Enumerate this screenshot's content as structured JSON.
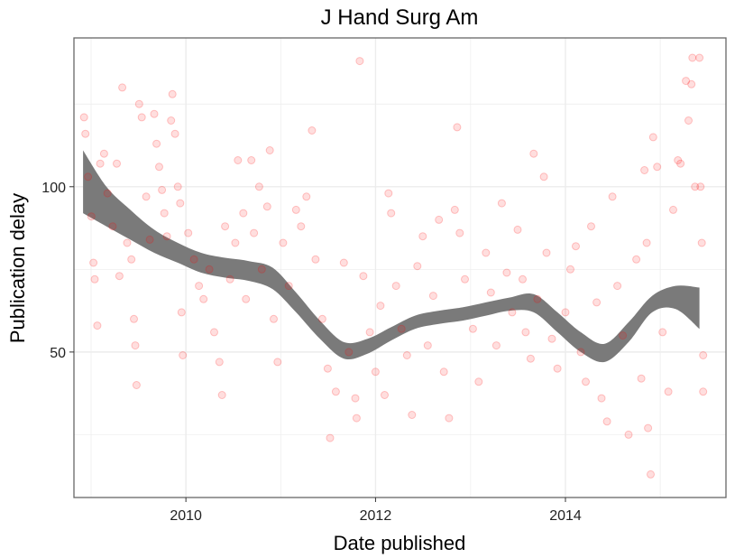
{
  "chart_data": {
    "type": "scatter",
    "title": "J Hand Surg Am",
    "xlabel": "Date published",
    "ylabel": "Publication delay",
    "x_ticks": [
      "2010",
      "2012",
      "2014"
    ],
    "y_ticks": [
      "50",
      "100"
    ],
    "xlim": [
      "2008-10-27",
      "2015-09-11"
    ],
    "ylim": [
      6,
      145
    ],
    "grid": true,
    "colors": {
      "points": "#ff0000",
      "smooth_band": "#7a7a7a",
      "panel_border": "#666666",
      "grid": "#ececec"
    },
    "smooth_band": [
      {
        "x": "2008-12-01",
        "lower": 92,
        "upper": 111
      },
      {
        "x": "2009-03-01",
        "lower": 88,
        "upper": 100
      },
      {
        "x": "2009-06-01",
        "lower": 84,
        "upper": 93
      },
      {
        "x": "2009-09-01",
        "lower": 80,
        "upper": 87
      },
      {
        "x": "2009-12-01",
        "lower": 77,
        "upper": 83
      },
      {
        "x": "2010-03-01",
        "lower": 74,
        "upper": 80
      },
      {
        "x": "2010-06-01",
        "lower": 72.5,
        "upper": 78.5
      },
      {
        "x": "2010-09-01",
        "lower": 71.5,
        "upper": 77.5
      },
      {
        "x": "2010-12-01",
        "lower": 69,
        "upper": 75.5
      },
      {
        "x": "2011-03-01",
        "lower": 62,
        "upper": 68
      },
      {
        "x": "2011-06-01",
        "lower": 54,
        "upper": 59.5
      },
      {
        "x": "2011-09-01",
        "lower": 48,
        "upper": 53
      },
      {
        "x": "2011-12-01",
        "lower": 49.5,
        "upper": 54
      },
      {
        "x": "2012-03-01",
        "lower": 53.5,
        "upper": 57.5
      },
      {
        "x": "2012-06-01",
        "lower": 57,
        "upper": 61
      },
      {
        "x": "2012-09-01",
        "lower": 58.5,
        "upper": 62.5
      },
      {
        "x": "2012-12-01",
        "lower": 59.5,
        "upper": 63.5
      },
      {
        "x": "2013-03-01",
        "lower": 61,
        "upper": 65
      },
      {
        "x": "2013-06-01",
        "lower": 62.5,
        "upper": 66.5
      },
      {
        "x": "2013-09-01",
        "lower": 62,
        "upper": 67.5
      },
      {
        "x": "2013-12-01",
        "lower": 56,
        "upper": 62
      },
      {
        "x": "2014-03-01",
        "lower": 50,
        "upper": 56
      },
      {
        "x": "2014-06-01",
        "lower": 47,
        "upper": 52.5
      },
      {
        "x": "2014-09-01",
        "lower": 53,
        "upper": 59
      },
      {
        "x": "2014-12-01",
        "lower": 62,
        "upper": 67
      },
      {
        "x": "2015-03-01",
        "lower": 63,
        "upper": 70
      },
      {
        "x": "2015-06-01",
        "lower": 57,
        "upper": 69.5
      }
    ],
    "points": [
      {
        "x": "2008-12-05",
        "y": 121
      },
      {
        "x": "2008-12-10",
        "y": 116
      },
      {
        "x": "2008-12-20",
        "y": 103
      },
      {
        "x": "2009-01-02",
        "y": 91
      },
      {
        "x": "2009-01-10",
        "y": 77
      },
      {
        "x": "2009-01-15",
        "y": 72
      },
      {
        "x": "2009-01-25",
        "y": 58
      },
      {
        "x": "2009-02-05",
        "y": 107
      },
      {
        "x": "2009-02-20",
        "y": 110
      },
      {
        "x": "2009-03-05",
        "y": 98
      },
      {
        "x": "2009-03-25",
        "y": 88
      },
      {
        "x": "2009-04-10",
        "y": 107
      },
      {
        "x": "2009-04-20",
        "y": 73
      },
      {
        "x": "2009-05-01",
        "y": 130
      },
      {
        "x": "2009-05-20",
        "y": 83
      },
      {
        "x": "2009-06-05",
        "y": 78
      },
      {
        "x": "2009-06-15",
        "y": 60
      },
      {
        "x": "2009-06-20",
        "y": 52
      },
      {
        "x": "2009-06-25",
        "y": 40
      },
      {
        "x": "2009-07-05",
        "y": 125
      },
      {
        "x": "2009-07-15",
        "y": 121
      },
      {
        "x": "2009-08-01",
        "y": 97
      },
      {
        "x": "2009-08-15",
        "y": 84
      },
      {
        "x": "2009-09-01",
        "y": 122
      },
      {
        "x": "2009-09-10",
        "y": 113
      },
      {
        "x": "2009-09-20",
        "y": 106
      },
      {
        "x": "2009-10-01",
        "y": 99
      },
      {
        "x": "2009-10-10",
        "y": 92
      },
      {
        "x": "2009-10-20",
        "y": 85
      },
      {
        "x": "2009-11-05",
        "y": 120
      },
      {
        "x": "2009-11-10",
        "y": 128
      },
      {
        "x": "2009-11-20",
        "y": 116
      },
      {
        "x": "2009-12-01",
        "y": 100
      },
      {
        "x": "2009-12-10",
        "y": 95
      },
      {
        "x": "2009-12-15",
        "y": 62
      },
      {
        "x": "2009-12-20",
        "y": 49
      },
      {
        "x": "2010-01-10",
        "y": 86
      },
      {
        "x": "2010-02-01",
        "y": 78
      },
      {
        "x": "2010-02-20",
        "y": 70
      },
      {
        "x": "2010-03-10",
        "y": 66
      },
      {
        "x": "2010-04-01",
        "y": 75
      },
      {
        "x": "2010-04-20",
        "y": 56
      },
      {
        "x": "2010-05-10",
        "y": 47
      },
      {
        "x": "2010-05-20",
        "y": 37
      },
      {
        "x": "2010-06-01",
        "y": 88
      },
      {
        "x": "2010-06-20",
        "y": 72
      },
      {
        "x": "2010-07-10",
        "y": 83
      },
      {
        "x": "2010-07-20",
        "y": 108
      },
      {
        "x": "2010-08-10",
        "y": 92
      },
      {
        "x": "2010-08-20",
        "y": 66
      },
      {
        "x": "2010-09-10",
        "y": 108
      },
      {
        "x": "2010-09-20",
        "y": 86
      },
      {
        "x": "2010-10-10",
        "y": 100
      },
      {
        "x": "2010-10-20",
        "y": 75
      },
      {
        "x": "2010-11-10",
        "y": 94
      },
      {
        "x": "2010-11-20",
        "y": 111
      },
      {
        "x": "2010-12-05",
        "y": 60
      },
      {
        "x": "2010-12-20",
        "y": 47
      },
      {
        "x": "2011-01-10",
        "y": 83
      },
      {
        "x": "2011-02-01",
        "y": 70
      },
      {
        "x": "2011-03-01",
        "y": 93
      },
      {
        "x": "2011-03-20",
        "y": 88
      },
      {
        "x": "2011-04-10",
        "y": 97
      },
      {
        "x": "2011-05-01",
        "y": 117
      },
      {
        "x": "2011-05-15",
        "y": 78
      },
      {
        "x": "2011-06-10",
        "y": 60
      },
      {
        "x": "2011-07-01",
        "y": 45
      },
      {
        "x": "2011-07-10",
        "y": 24
      },
      {
        "x": "2011-08-01",
        "y": 38
      },
      {
        "x": "2011-09-01",
        "y": 77
      },
      {
        "x": "2011-09-20",
        "y": 50
      },
      {
        "x": "2011-10-15",
        "y": 36
      },
      {
        "x": "2011-10-20",
        "y": 30
      },
      {
        "x": "2011-11-01",
        "y": 138
      },
      {
        "x": "2011-11-15",
        "y": 73
      },
      {
        "x": "2011-12-10",
        "y": 56
      },
      {
        "x": "2012-01-01",
        "y": 44
      },
      {
        "x": "2012-01-20",
        "y": 64
      },
      {
        "x": "2012-02-05",
        "y": 37
      },
      {
        "x": "2012-02-20",
        "y": 98
      },
      {
        "x": "2012-03-01",
        "y": 92
      },
      {
        "x": "2012-03-20",
        "y": 70
      },
      {
        "x": "2012-04-10",
        "y": 57
      },
      {
        "x": "2012-05-01",
        "y": 49
      },
      {
        "x": "2012-05-20",
        "y": 31
      },
      {
        "x": "2012-06-10",
        "y": 76
      },
      {
        "x": "2012-07-01",
        "y": 85
      },
      {
        "x": "2012-07-20",
        "y": 52
      },
      {
        "x": "2012-08-10",
        "y": 67
      },
      {
        "x": "2012-09-01",
        "y": 90
      },
      {
        "x": "2012-09-20",
        "y": 44
      },
      {
        "x": "2012-10-10",
        "y": 30
      },
      {
        "x": "2012-11-01",
        "y": 93
      },
      {
        "x": "2012-11-10",
        "y": 118
      },
      {
        "x": "2012-11-20",
        "y": 86
      },
      {
        "x": "2012-12-10",
        "y": 72
      },
      {
        "x": "2013-01-10",
        "y": 57
      },
      {
        "x": "2013-02-01",
        "y": 41
      },
      {
        "x": "2013-03-01",
        "y": 80
      },
      {
        "x": "2013-03-20",
        "y": 68
      },
      {
        "x": "2013-04-10",
        "y": 52
      },
      {
        "x": "2013-05-01",
        "y": 95
      },
      {
        "x": "2013-05-20",
        "y": 74
      },
      {
        "x": "2013-06-10",
        "y": 62
      },
      {
        "x": "2013-07-01",
        "y": 87
      },
      {
        "x": "2013-07-20",
        "y": 72
      },
      {
        "x": "2013-08-01",
        "y": 56
      },
      {
        "x": "2013-08-20",
        "y": 48
      },
      {
        "x": "2013-09-01",
        "y": 110
      },
      {
        "x": "2013-09-15",
        "y": 66
      },
      {
        "x": "2013-10-10",
        "y": 103
      },
      {
        "x": "2013-10-20",
        "y": 80
      },
      {
        "x": "2013-11-10",
        "y": 54
      },
      {
        "x": "2013-12-01",
        "y": 45
      },
      {
        "x": "2014-01-01",
        "y": 62
      },
      {
        "x": "2014-01-20",
        "y": 75
      },
      {
        "x": "2014-02-10",
        "y": 82
      },
      {
        "x": "2014-03-01",
        "y": 50
      },
      {
        "x": "2014-03-20",
        "y": 41
      },
      {
        "x": "2014-04-10",
        "y": 88
      },
      {
        "x": "2014-05-01",
        "y": 65
      },
      {
        "x": "2014-05-20",
        "y": 36
      },
      {
        "x": "2014-06-10",
        "y": 29
      },
      {
        "x": "2014-07-01",
        "y": 97
      },
      {
        "x": "2014-07-20",
        "y": 70
      },
      {
        "x": "2014-08-10",
        "y": 55
      },
      {
        "x": "2014-09-01",
        "y": 25
      },
      {
        "x": "2014-10-01",
        "y": 78
      },
      {
        "x": "2014-10-20",
        "y": 42
      },
      {
        "x": "2014-11-01",
        "y": 105
      },
      {
        "x": "2014-11-10",
        "y": 83
      },
      {
        "x": "2014-11-15",
        "y": 27
      },
      {
        "x": "2014-11-25",
        "y": 13
      },
      {
        "x": "2014-12-05",
        "y": 115
      },
      {
        "x": "2014-12-20",
        "y": 106
      },
      {
        "x": "2015-01-10",
        "y": 56
      },
      {
        "x": "2015-02-01",
        "y": 38
      },
      {
        "x": "2015-02-20",
        "y": 93
      },
      {
        "x": "2015-03-10",
        "y": 108
      },
      {
        "x": "2015-03-20",
        "y": 107
      },
      {
        "x": "2015-04-10",
        "y": 132
      },
      {
        "x": "2015-04-20",
        "y": 120
      },
      {
        "x": "2015-05-01",
        "y": 131
      },
      {
        "x": "2015-05-05",
        "y": 139
      },
      {
        "x": "2015-05-15",
        "y": 100
      },
      {
        "x": "2015-06-01",
        "y": 139
      },
      {
        "x": "2015-06-05",
        "y": 100
      },
      {
        "x": "2015-06-10",
        "y": 83
      },
      {
        "x": "2015-06-15",
        "y": 49
      },
      {
        "x": "2015-06-15",
        "y": 38
      }
    ]
  }
}
